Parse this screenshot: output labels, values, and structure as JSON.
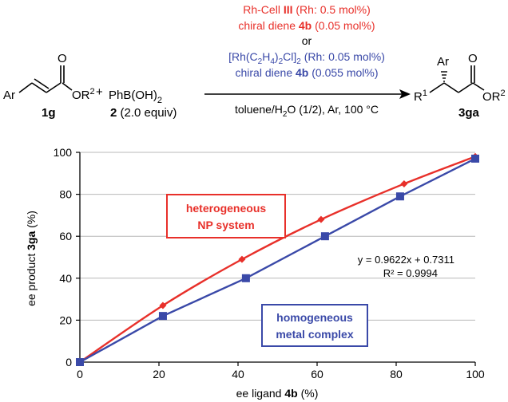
{
  "colors": {
    "red": "#e8302a",
    "blue": "#3a49a8",
    "grid": "#b8b8b8",
    "axis": "#000000"
  },
  "scheme": {
    "conditions_red_line1_pre": "Rh-Cell ",
    "conditions_red_line1_bold": "III",
    "conditions_red_line1_post": " (Rh: 0.5 mol%)",
    "conditions_red_line2_pre": "chiral diene ",
    "conditions_red_line2_bold": "4b",
    "conditions_red_line2_post": " (0.05 mol%)",
    "or_text": "or",
    "conditions_blue_line1_a": "[Rh(C",
    "conditions_blue_line1_sub1": "2",
    "conditions_blue_line1_b": "H",
    "conditions_blue_line1_sub2": "4",
    "conditions_blue_line1_c": ")",
    "conditions_blue_line1_sub3": "2",
    "conditions_blue_line1_d": "Cl]",
    "conditions_blue_line1_sub4": "2",
    "conditions_blue_line1_e": " (Rh: 0.05 mol%)",
    "conditions_blue_line2_pre": "chiral diene ",
    "conditions_blue_line2_bold": "4b",
    "conditions_blue_line2_post": " (0.055 mol%)",
    "solvent_a": "toluene/H",
    "solvent_sub": "2",
    "solvent_b": "O (1/2), Ar, 100 °C",
    "reactant1_ar": "Ar",
    "reactant1_o": "O",
    "reactant1_or": "OR",
    "reactant1_or_sup": "2",
    "reactant1_label": "1g",
    "plus": "+",
    "reagent_a": "PhB(OH)",
    "reagent_sub": "2",
    "reagent_label_bold": "2",
    "reagent_label_rest": " (2.0 equiv)",
    "product_ar": "Ar",
    "product_o": "O",
    "product_r1": "R",
    "product_r1_sup": "1",
    "product_or": "OR",
    "product_or_sup": "2",
    "product_label": "3ga"
  },
  "chart_data": {
    "type": "line",
    "xlabel_pre": "ee ligand ",
    "xlabel_bold": "4b",
    "xlabel_post": " (%)",
    "ylabel_pre": "ee product ",
    "ylabel_bold": "3ga",
    "ylabel_post": " (%)",
    "xlim": [
      0,
      100
    ],
    "ylim": [
      0,
      100
    ],
    "xticks": [
      0,
      20,
      40,
      60,
      80,
      100
    ],
    "yticks": [
      0,
      20,
      40,
      60,
      80,
      100
    ],
    "grid": "horizontal",
    "series": [
      {
        "name": "heterogeneous NP system",
        "color": "#e8302a",
        "marker": "diamond",
        "x": [
          0,
          21,
          41,
          61,
          82,
          100
        ],
        "y": [
          0,
          27,
          49,
          68,
          85,
          98
        ]
      },
      {
        "name": "homogeneous metal complex",
        "color": "#3a49a8",
        "marker": "square",
        "x": [
          0,
          21,
          42,
          62,
          81,
          100
        ],
        "y": [
          0,
          22,
          40,
          60,
          79,
          97
        ]
      }
    ],
    "annotations": {
      "red_box_line1": "heterogeneous",
      "red_box_line2": "NP system",
      "blue_box_line1": "homogeneous",
      "blue_box_line2": "metal complex",
      "fit_equation": "y = 0.9622x + 0.7311",
      "fit_r2": "R² = 0.9994"
    }
  }
}
